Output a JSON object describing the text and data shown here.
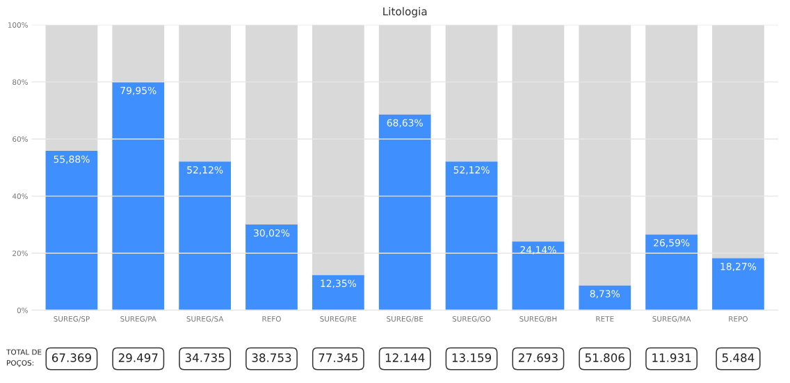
{
  "chart_data": {
    "type": "bar",
    "title": "Litologia",
    "stacked": true,
    "categories": [
      "SUREG/SP",
      "SUREG/PA",
      "SUREG/SA",
      "REFO",
      "SUREG/RE",
      "SUREG/BE",
      "SUREG/GO",
      "SUREG/BH",
      "RETE",
      "SUREG/MA",
      "REPO"
    ],
    "series": [
      {
        "color": "#408ffe",
        "values": [
          55.88,
          79.95,
          52.12,
          30.02,
          12.35,
          68.63,
          52.12,
          24.14,
          8.73,
          26.59,
          18.27
        ],
        "value_labels": [
          "55,88%",
          "79,95%",
          "52,12%",
          "30,02%",
          "12,35%",
          "68,63%",
          "52,12%",
          "24,14%",
          "8,73%",
          "26,59%",
          "18,27%"
        ]
      },
      {
        "color": "#d9d9d9",
        "values": [
          44.1,
          20.1,
          47.9,
          70.0,
          87.7,
          31.4,
          47.9,
          75.9,
          91.3,
          73.4,
          81.7
        ]
      }
    ],
    "ylim": [
      0,
      100
    ],
    "yticks": [
      {
        "value": 0,
        "label": "0%"
      },
      {
        "value": 20,
        "label": "20%"
      },
      {
        "value": 40,
        "label": "40%"
      },
      {
        "value": 60,
        "label": "60%"
      },
      {
        "value": 80,
        "label": "80%"
      },
      {
        "value": 100,
        "label": "100%"
      }
    ],
    "grid": "y",
    "annotations": [
      "TOTAL DE\nPOÇOS:",
      "67.369",
      "29.497",
      "34.735",
      "38.753",
      "77.345",
      "12.144",
      "13.159",
      "27.693",
      "51.806",
      "11.931",
      "5.484"
    ]
  }
}
